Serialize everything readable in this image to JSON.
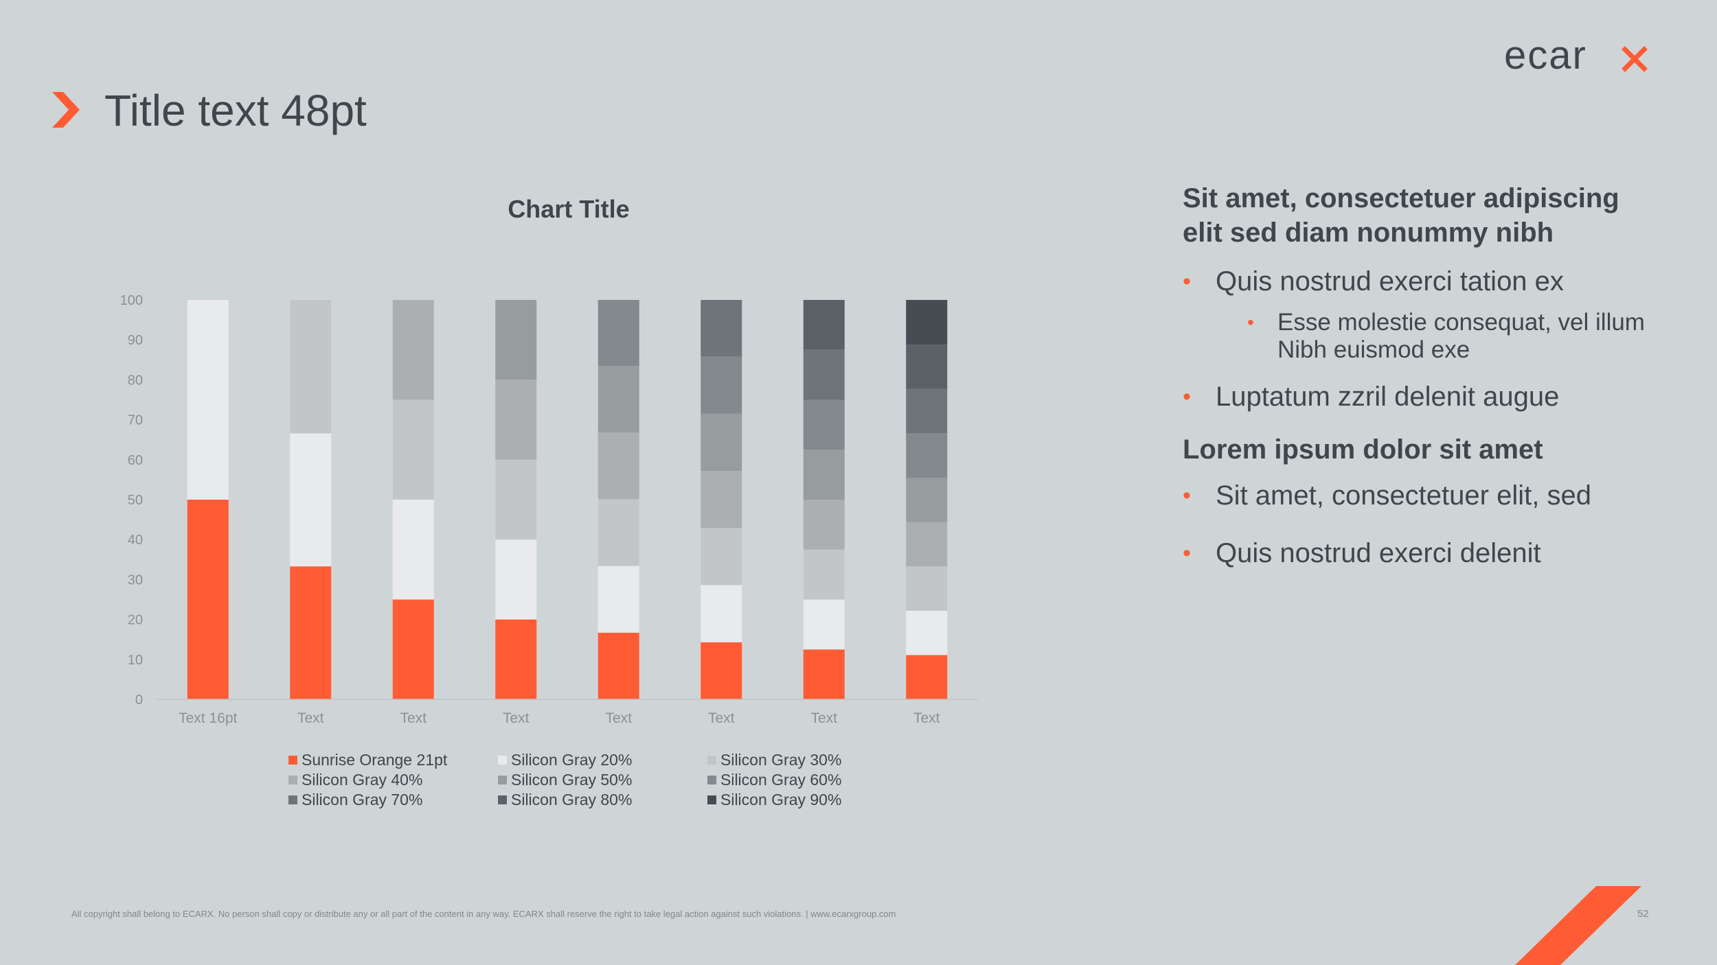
{
  "slide": {
    "title": "Title text 48pt",
    "page_number": "52",
    "footer": "All copyright shall belong to ECARX.  No person shall copy or distribute any or all part of the content in any way.  ECARX shall reserve the right to take legal action against such violations. | www.ecarxgroup.com",
    "brand": "ecarx",
    "colors": {
      "accent": "#ff5c35",
      "background": "#cfd5d6",
      "text": "#3f464c"
    }
  },
  "side_text": {
    "heading1": "Sit amet, consectetuer adipiscing elit sed diam nonummy nibh",
    "bullet1": "Quis nostrud exerci tation ex",
    "sub_bullet": "Esse molestie consequat, vel illum Nibh euismod exe",
    "bullet2": "Luptatum zzril delenit augue",
    "heading2": "Lorem ipsum dolor sit amet",
    "bullet3": "Sit amet, consectetuer elit, sed",
    "bullet4": "Quis nostrud exerci delenit"
  },
  "chart_data": {
    "type": "bar",
    "stacked": true,
    "title": "Chart Title",
    "xlabel": "",
    "ylabel": "",
    "ylim": [
      0,
      100
    ],
    "yticks": [
      0,
      10,
      20,
      30,
      40,
      50,
      60,
      70,
      80,
      90,
      100
    ],
    "grid": false,
    "legend_position": "bottom",
    "categories": [
      "Text 16pt",
      "Text",
      "Text",
      "Text",
      "Text",
      "Text",
      "Text",
      "Text"
    ],
    "series": [
      {
        "name": "Sunrise Orange 21pt",
        "color": "#ff5c35",
        "values": [
          50,
          33.3,
          25,
          20,
          16.7,
          14.3,
          12.5,
          11.1
        ]
      },
      {
        "name": "Silicon Gray 20%",
        "color": "#e9eaeb",
        "values": [
          50,
          33.3,
          25,
          20,
          16.7,
          14.3,
          12.5,
          11.1
        ]
      },
      {
        "name": "Silicon Gray 30%",
        "color": "#c3c6c9",
        "values": [
          0,
          33.4,
          25,
          20,
          16.7,
          14.3,
          12.5,
          11.1
        ]
      },
      {
        "name": "Silicon Gray 40%",
        "color": "#abafb2",
        "values": [
          0,
          0,
          25,
          20,
          16.7,
          14.3,
          12.5,
          11.1
        ]
      },
      {
        "name": "Silicon Gray 50%",
        "color": "#979c9f",
        "values": [
          0,
          0,
          0,
          20,
          16.7,
          14.3,
          12.5,
          11.1
        ]
      },
      {
        "name": "Silicon Gray 60%",
        "color": "#838a8e",
        "values": [
          0,
          0,
          0,
          0,
          16.5,
          14.3,
          12.5,
          11.1
        ]
      },
      {
        "name": "Silicon Gray 70%",
        "color": "#6e757a",
        "values": [
          0,
          0,
          0,
          0,
          0,
          14.2,
          12.5,
          11.1
        ]
      },
      {
        "name": "Silicon Gray 80%",
        "color": "#5a6167",
        "values": [
          0,
          0,
          0,
          0,
          0,
          0,
          12.5,
          11.1
        ]
      },
      {
        "name": "Silicon Gray 90%",
        "color": "#454d53",
        "values": [
          0,
          0,
          0,
          0,
          0,
          0,
          0,
          11.2
        ]
      }
    ]
  }
}
